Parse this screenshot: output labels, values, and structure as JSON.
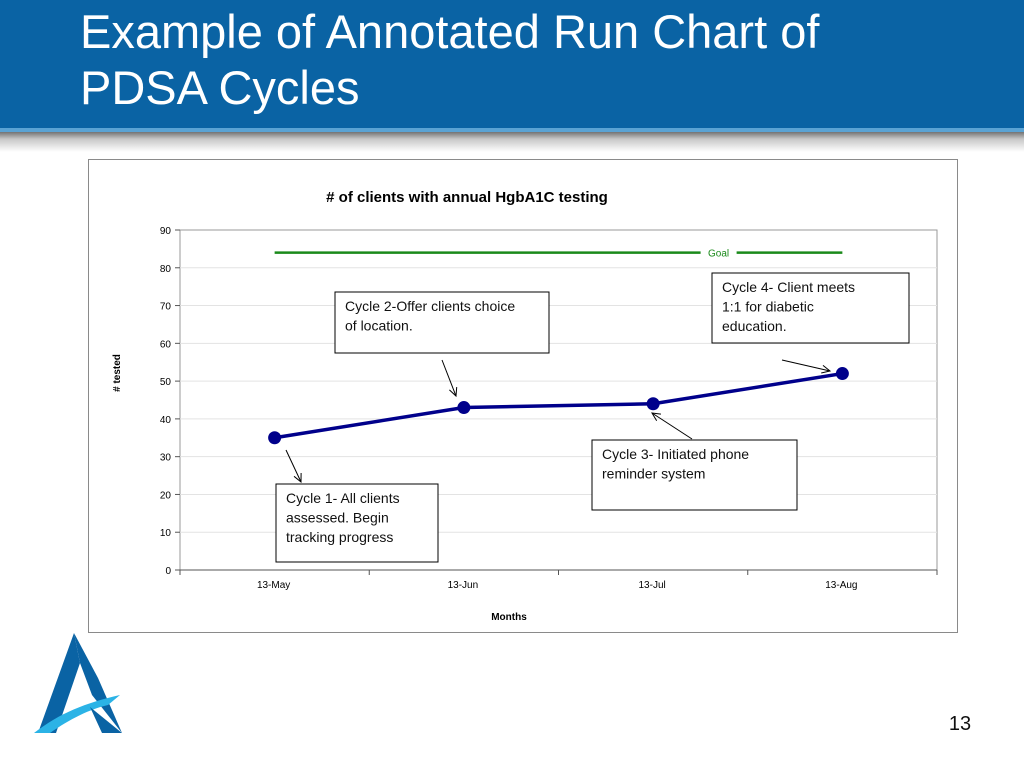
{
  "slide": {
    "title": "Example of Annotated Run Chart of\nPDSA Cycles",
    "page_number": "13"
  },
  "colors": {
    "header_bg": "#0a63a4",
    "header_border": "#5aa3d4",
    "series_color": "#00008b",
    "goal_color": "#1a8a1a",
    "logo_dark": "#0a63a4",
    "logo_light": "#2bb3e6"
  },
  "icons": {
    "logo": "a-logo-icon"
  },
  "chart_data": {
    "type": "line",
    "title": "# of clients with annual HgbA1C testing",
    "xlabel": "Months",
    "ylabel": "# tested",
    "categories": [
      "13-May",
      "13-Jun",
      "13-Jul",
      "13-Aug"
    ],
    "series": [
      {
        "values": [
          35,
          43,
          44,
          52
        ]
      }
    ],
    "goal": {
      "label": "Goal",
      "value": 84
    },
    "ylim": [
      0,
      90
    ],
    "yticks": [
      0,
      10,
      20,
      30,
      40,
      50,
      60,
      70,
      80,
      90
    ],
    "grid": true,
    "annotations": [
      {
        "category": "13-May",
        "lines": [
          "Cycle 1- All clients",
          "assessed. Begin",
          "tracking progress"
        ]
      },
      {
        "category": "13-Jun",
        "lines": [
          "Cycle 2-Offer clients choice",
          "of location."
        ]
      },
      {
        "category": "13-Jul",
        "lines": [
          "Cycle 3- Initiated phone",
          "reminder system"
        ]
      },
      {
        "category": "13-Aug",
        "lines": [
          "Cycle 4- Client meets",
          "1:1 for diabetic",
          "education."
        ]
      }
    ]
  }
}
